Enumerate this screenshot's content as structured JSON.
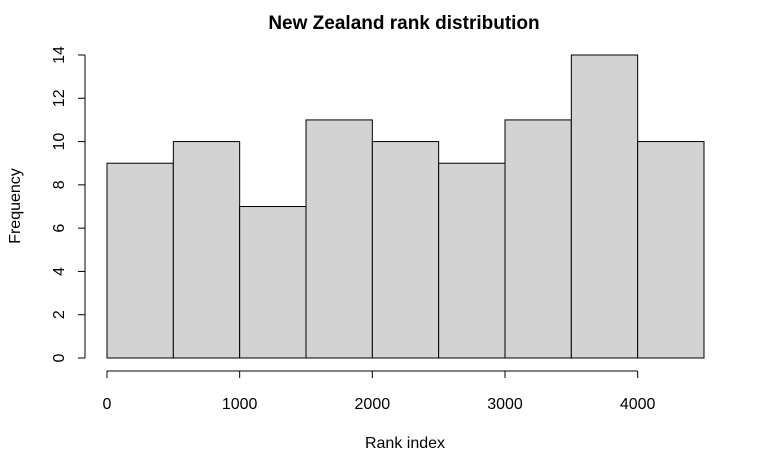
{
  "chart_data": {
    "type": "bar",
    "title": "New Zealand rank distribution",
    "xlabel": "Rank index",
    "ylabel": "Frequency",
    "bins": [
      {
        "start": 0,
        "end": 500,
        "count": 9
      },
      {
        "start": 500,
        "end": 1000,
        "count": 10
      },
      {
        "start": 1000,
        "end": 1500,
        "count": 7
      },
      {
        "start": 1500,
        "end": 2000,
        "count": 11
      },
      {
        "start": 2000,
        "end": 2500,
        "count": 10
      },
      {
        "start": 2500,
        "end": 3000,
        "count": 9
      },
      {
        "start": 3000,
        "end": 3500,
        "count": 11
      },
      {
        "start": 3500,
        "end": 4000,
        "count": 14
      },
      {
        "start": 4000,
        "end": 4500,
        "count": 10
      }
    ],
    "xticks": [
      "0",
      "1000",
      "2000",
      "3000",
      "4000"
    ],
    "yticks": [
      "0",
      "2",
      "4",
      "6",
      "8",
      "10",
      "12",
      "14"
    ],
    "xlim": [
      0,
      4500
    ],
    "ylim": [
      0,
      14
    ],
    "grid": false,
    "legend": "none",
    "bar_fill": "#d3d3d3",
    "bar_stroke": "#000000"
  }
}
